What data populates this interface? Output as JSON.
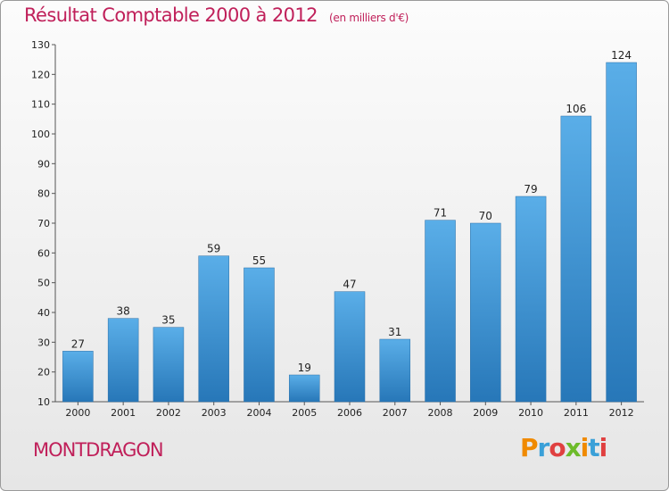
{
  "header": {
    "title": "Résultat Comptable 2000 à 2012",
    "subtitle": "(en milliers d'€)"
  },
  "footer": {
    "commune": "MONTDRAGON",
    "logo": {
      "text": "Proxiti",
      "letter_colors": [
        "#f08a00",
        "#3aa0d8",
        "#e04040",
        "#6dbb2a",
        "#f08a00",
        "#3aa0d8",
        "#e04040"
      ]
    }
  },
  "colors": {
    "accent": "#c0205a",
    "bar_top": "#5aaee8",
    "bar_bottom": "#2777b8"
  },
  "chart_data": {
    "type": "bar",
    "categories": [
      "2000",
      "2001",
      "2002",
      "2003",
      "2004",
      "2005",
      "2006",
      "2007",
      "2008",
      "2009",
      "2010",
      "2011",
      "2012"
    ],
    "values": [
      27,
      38,
      35,
      59,
      55,
      19,
      47,
      31,
      71,
      70,
      79,
      106,
      124
    ],
    "title": "Résultat Comptable 2000 à 2012",
    "subtitle": "(en milliers d'€)",
    "xlabel": "",
    "ylabel": "",
    "ylim": [
      10,
      130
    ],
    "ytick_step": 10,
    "grid": false,
    "legend": "none"
  }
}
